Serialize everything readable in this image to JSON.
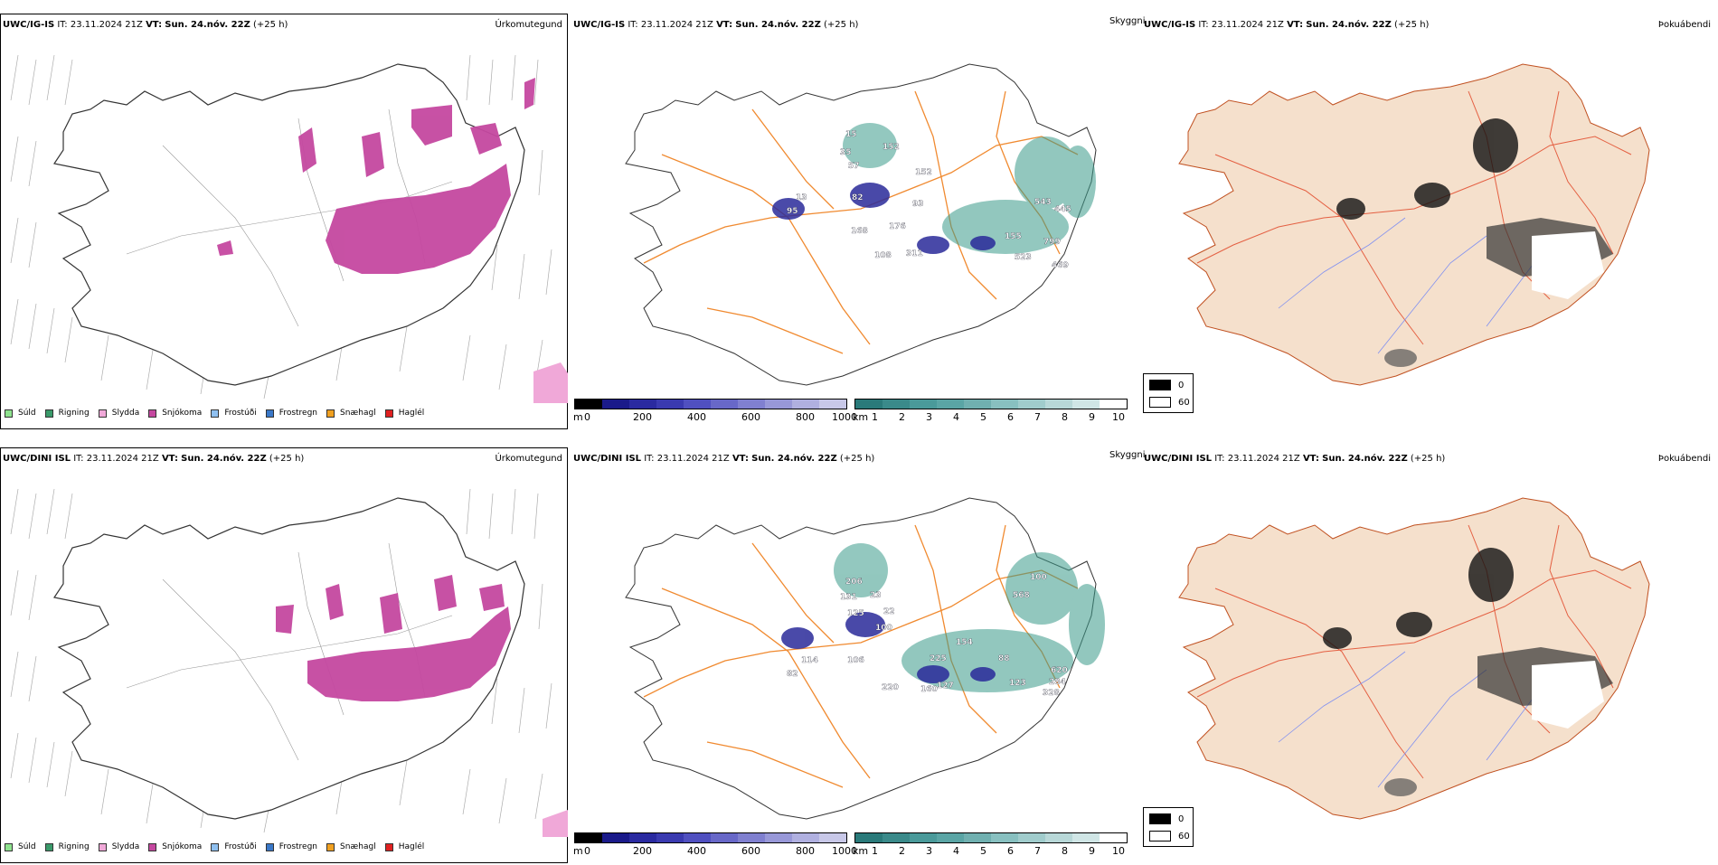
{
  "precip_legend": [
    {
      "label": "Súld",
      "color": "#8fe38f"
    },
    {
      "label": "Rigning",
      "color": "#3a9a6a"
    },
    {
      "label": "Slydda",
      "color": "#f0a8d8"
    },
    {
      "label": "Snjókoma",
      "color": "#c548a0"
    },
    {
      "label": "Frostúði",
      "color": "#8fc0f0"
    },
    {
      "label": "Frostregn",
      "color": "#3a78c8"
    },
    {
      "label": "Snæhagl",
      "color": "#f0a020"
    },
    {
      "label": "Haglél",
      "color": "#e02020"
    }
  ],
  "ceiling_scale": {
    "unit": "m",
    "ticks": [
      "0",
      "200",
      "400",
      "600",
      "800",
      "1000"
    ]
  },
  "visibility_scale": {
    "unit": "km",
    "ticks": [
      "1",
      "2",
      "3",
      "4",
      "5",
      "6",
      "7",
      "8",
      "9",
      "10"
    ]
  },
  "fog_legend": {
    "low": "0",
    "high": "60"
  },
  "rows": [
    {
      "model": "UWC/IG-IS",
      "init_label": "IT:",
      "init": "23.11.2024 21Z",
      "valid_label": "VT:",
      "valid": "Sun. 24.nóv. 22Z",
      "lead": "(+25 h)",
      "panels": [
        {
          "type": "Úrkomutegund"
        },
        {
          "type": "Skyggni",
          "labels": [
            "95",
            "13",
            "82",
            "15",
            "35",
            "57",
            "152",
            "93",
            "152",
            "176",
            "168",
            "108",
            "311",
            "155",
            "523",
            "799",
            "469",
            "445",
            "543"
          ]
        },
        {
          "type": "Þokuábendi"
        }
      ]
    },
    {
      "model": "UWC/DINI ISL",
      "init_label": "IT:",
      "init": "23.11.2024 21Z",
      "valid_label": "VT:",
      "valid": "Sun. 24.nóv. 22Z",
      "lead": "(+25 h)",
      "panels": [
        {
          "type": "Úrkomutegund"
        },
        {
          "type": "Skyggni",
          "labels": [
            "206",
            "131",
            "125",
            "23",
            "22",
            "100",
            "82",
            "114",
            "106",
            "220",
            "160",
            "127",
            "225",
            "154",
            "88",
            "123",
            "328",
            "620",
            "284",
            "568",
            "100"
          ]
        },
        {
          "type": "Þokuábendi"
        }
      ]
    }
  ]
}
